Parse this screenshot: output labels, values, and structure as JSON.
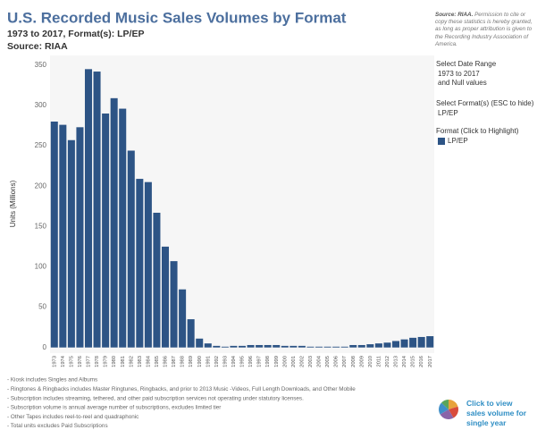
{
  "chart_data": {
    "type": "bar",
    "title": "U.S. Recorded Music Sales Volumes by Format",
    "subtitle": "1973 to 2017, Format(s): LP/EP",
    "source": "Source: RIAA",
    "ylabel": "Units (Millions)",
    "categories": [
      "1973",
      "1974",
      "1975",
      "1976",
      "1977",
      "1978",
      "1979",
      "1980",
      "1981",
      "1982",
      "1983",
      "1984",
      "1985",
      "1986",
      "1987",
      "1988",
      "1989",
      "1990",
      "1991",
      "1992",
      "1993",
      "1994",
      "1995",
      "1996",
      "1997",
      "1998",
      "1999",
      "2000",
      "2001",
      "2002",
      "2003",
      "2004",
      "2005",
      "2006",
      "2007",
      "2008",
      "2009",
      "2010",
      "2011",
      "2012",
      "2013",
      "2014",
      "2015",
      "2016",
      "2017"
    ],
    "series": [
      {
        "name": "LP/EP",
        "color": "#2d5485",
        "values": [
          280,
          276,
          257,
          273,
          345,
          342,
          290,
          309,
          296,
          244,
          209,
          205,
          167,
          125,
          107,
          72,
          35,
          11,
          5,
          2,
          1,
          2,
          2,
          3,
          3,
          3,
          3,
          2,
          2,
          2,
          1,
          1,
          1,
          1,
          1,
          3,
          3,
          4,
          5,
          6,
          8,
          10,
          12,
          13,
          14
        ]
      }
    ],
    "ylim": [
      -7,
      362
    ],
    "yticks": [
      0,
      50,
      100,
      150,
      200,
      250,
      300,
      350
    ],
    "grid": false,
    "legend_title": "Format (Click to Highlight)"
  },
  "source_note": {
    "lead": "Source: RIAA.",
    "text": "Permission to cite or copy these statistics is hereby granted, as long as proper attribution is given to the Recording Industry Association of America."
  },
  "sidebar": {
    "date_title": "Select Date Range",
    "date_range": "1973 to 2017",
    "date_null": "and Null values",
    "format_title": "Select Format(s) (ESC to hide)",
    "format_value": "LP/EP"
  },
  "notes": [
    "- Kiosk includes Singles and Albums",
    "- Ringtones & Ringbacks includes Master Ringtunes, Ringbacks, and prior to 2013 Music -Videos, Full Length Downloads, and Other Mobile",
    "- Subscription includes streaming, tethered, and other paid subscription services not operating under statutory licenses.",
    "- Subscription volume is annual average number of subscriptions, excludes limited tier",
    "- Other Tapes includes reel-to-reel and quadraphonic",
    "- Total units excludes Paid Subscriptions"
  ],
  "link": "Click to view sales volume for single year"
}
